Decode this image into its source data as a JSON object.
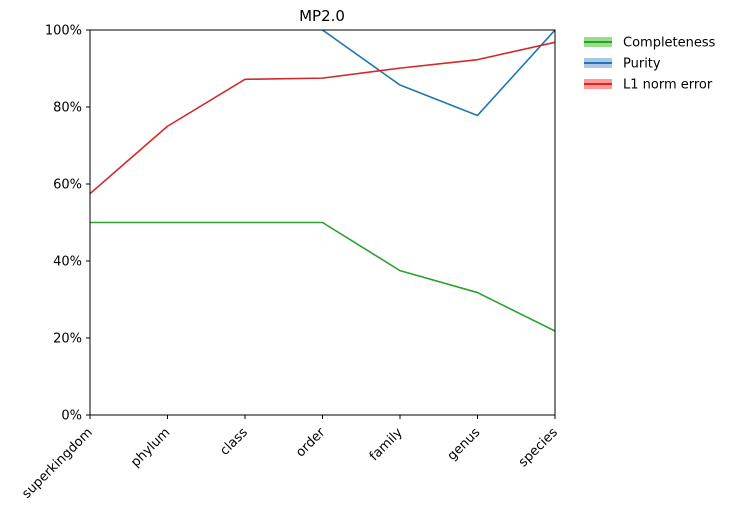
{
  "chart_data": {
    "type": "line",
    "title": "MP2.0",
    "xlabel": "",
    "ylabel": "",
    "categories": [
      "superkingdom",
      "phylum",
      "class",
      "order",
      "family",
      "genus",
      "species"
    ],
    "ylim": [
      0,
      1
    ],
    "yticks": [
      {
        "value": 0,
        "label": "0%"
      },
      {
        "value": 0.2,
        "label": "20%"
      },
      {
        "value": 0.4,
        "label": "40%"
      },
      {
        "value": 0.6,
        "label": "60%"
      },
      {
        "value": 0.8,
        "label": "80%"
      },
      {
        "value": 1.0,
        "label": "100%"
      }
    ],
    "grid": false,
    "legend_position": "outside-top-right",
    "series": [
      {
        "name": "Completeness",
        "color": "#2ca02c",
        "band_color": "#98df8a",
        "values": [
          0.5,
          0.5,
          0.5,
          0.5,
          0.375,
          0.318,
          0.218
        ]
      },
      {
        "name": "Purity",
        "color": "#1f77b4",
        "band_color": "#aec7e8",
        "values": [
          null,
          null,
          null,
          1.0,
          0.857,
          0.778,
          1.0
        ]
      },
      {
        "name": "L1 norm error",
        "color": "#d62728",
        "band_color": "#ff9896",
        "values": [
          0.575,
          0.75,
          0.872,
          0.875,
          0.901,
          0.923,
          0.968
        ]
      }
    ]
  }
}
